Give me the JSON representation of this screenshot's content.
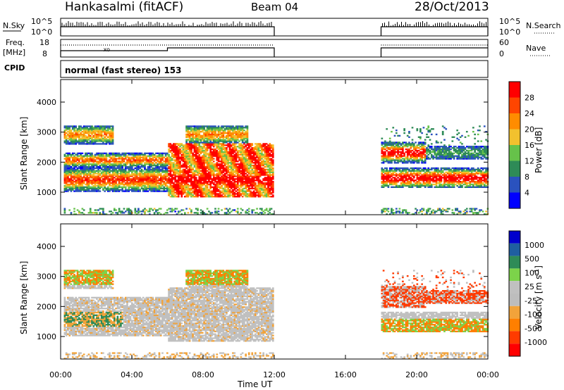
{
  "header": {
    "station": "Hankasalmi (fitACF)",
    "beam": "Beam 04",
    "date": "28/Oct/2013"
  },
  "left_labels": {
    "nsky": "N.Sky",
    "freq_line1": "Freq.",
    "freq_line2": "[MHz]",
    "cpid": "CPID"
  },
  "right_labels": {
    "nsearch": "N.Search",
    "nave": "Nave"
  },
  "cpid_text": "normal (fast stereo) 153",
  "xlabel": "Time UT",
  "xticks": [
    "00:00",
    "04:00",
    "08:00",
    "12:00",
    "16:00",
    "20:00",
    "00:00"
  ],
  "colors": {
    "nodata_gap": [
      12,
      18
    ],
    "power_scale": [
      "#0000ff",
      "#2a52be",
      "#2e8b57",
      "#66c24a",
      "#f2c12e",
      "#ff8c00",
      "#ff4500",
      "#ff0000"
    ],
    "velocity_scale": [
      "#0000cd",
      "#1f5fa0",
      "#2e8b57",
      "#7cd34a",
      "#c0c0c0",
      "#bdbdbd",
      "#f2a33a",
      "#ff7f00",
      "#ff3b00",
      "#ff0000"
    ]
  },
  "chart_data": [
    {
      "type": "line",
      "name": "N.Sky / N.Search",
      "ylabel_left": "N.Sky",
      "ylabel_right": "N.Search",
      "left_ticks": [
        "10^5",
        "10^0"
      ],
      "right_ticks": [
        "10^5",
        "10^0"
      ],
      "x_range_hours": [
        0,
        24
      ],
      "data_segments_hours": [
        [
          0,
          12
        ],
        [
          18,
          24
        ]
      ]
    },
    {
      "type": "line",
      "name": "Freq / Nave",
      "ylabel_left": "Freq. [MHz]",
      "ylabel_right": "Nave",
      "left_ticks": [
        18,
        8
      ],
      "right_ticks": [
        60,
        0
      ],
      "x_range_hours": [
        0,
        24
      ],
      "data_segments_hours": [
        [
          0,
          12
        ],
        [
          18,
          24
        ]
      ]
    },
    {
      "type": "heatmap",
      "title": "Power",
      "ylabel": "Slant Range [km]",
      "y_ticks": [
        1000,
        2000,
        3000,
        4000
      ],
      "colorbar_label": "Power [dB]",
      "colorbar_ticks": [
        4,
        8,
        12,
        16,
        20,
        24,
        28
      ],
      "x_range_hours": [
        0,
        24
      ],
      "data_segments_hours": [
        [
          0,
          12
        ],
        [
          18,
          24
        ]
      ]
    },
    {
      "type": "heatmap",
      "title": "Velocity",
      "ylabel": "Slant Range [km]",
      "y_ticks": [
        1000,
        2000,
        3000,
        4000
      ],
      "colorbar_label": "Velocity [m s^-1]",
      "colorbar_ticks": [
        1000,
        500,
        100,
        25,
        -25,
        -100,
        -500,
        -1000
      ],
      "x_range_hours": [
        0,
        24
      ],
      "data_segments_hours": [
        [
          0,
          12
        ],
        [
          18,
          24
        ]
      ]
    }
  ]
}
